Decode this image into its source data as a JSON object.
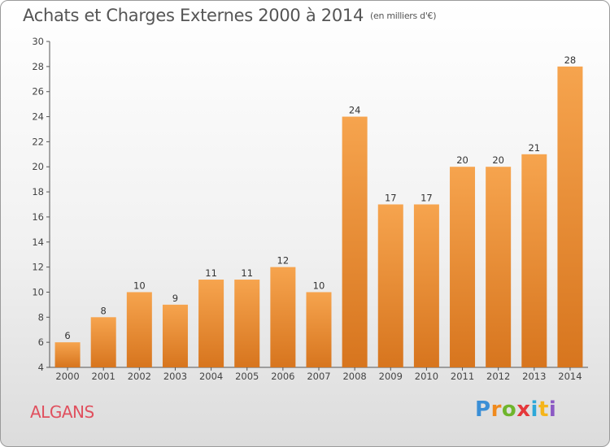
{
  "title": "Achats et Charges Externes 2000 à 2014",
  "unit": "(en milliers d'€)",
  "commune": "ALGANS",
  "logo": {
    "letters": [
      "P",
      "r",
      "o",
      "x",
      "i",
      "t",
      "i"
    ],
    "colors": [
      "#3b8fd6",
      "#f08a1d",
      "#6fb52c",
      "#e5383b",
      "#2ea8d8",
      "#f5b51a",
      "#8c59c4"
    ]
  },
  "colors": {
    "bar_light": "#f6a44e",
    "bar_dark": "#d7751e",
    "commune": "#e0505e"
  },
  "chart_data": {
    "type": "bar",
    "categories": [
      "2000",
      "2001",
      "2002",
      "2003",
      "2004",
      "2005",
      "2006",
      "2007",
      "2008",
      "2009",
      "2010",
      "2011",
      "2012",
      "2013",
      "2014"
    ],
    "values": [
      6,
      8,
      10,
      9,
      11,
      11,
      12,
      10,
      24,
      17,
      17,
      20,
      20,
      21,
      28
    ],
    "ylim": [
      4,
      30
    ],
    "yticks": [
      4,
      6,
      8,
      10,
      12,
      14,
      16,
      18,
      20,
      22,
      24,
      26,
      28,
      30
    ],
    "grid": false,
    "legend": "none"
  }
}
